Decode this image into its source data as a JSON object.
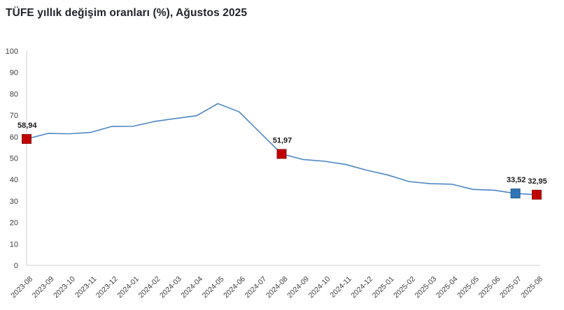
{
  "header": {
    "title": "TÜFE yıllık değişim oranları (%), Ağustos 2025"
  },
  "chart_data": {
    "type": "line",
    "title": "TÜFE yıllık değişim oranları (%), Ağustos 2025",
    "xlabel": "",
    "ylabel": "",
    "ylim": [
      0,
      100
    ],
    "ytick_step": 10,
    "grid": false,
    "legend": "none",
    "line_color": "#4e86c4",
    "axis_color": "#d2d2d2",
    "tick_label_color": "#3d3d3d",
    "categories": [
      "2023-08",
      "2023-09",
      "2023-10",
      "2023-11",
      "2023-12",
      "2024-01",
      "2024-02",
      "2024-03",
      "2024-04",
      "2024-05",
      "2024-06",
      "2024-07",
      "2024-08",
      "2024-09",
      "2024-10",
      "2024-11",
      "2024-12",
      "2025-01",
      "2025-02",
      "2025-03",
      "2025-04",
      "2025-05",
      "2025-06",
      "2025-07",
      "2025-08"
    ],
    "series": [
      {
        "name": "TÜFE yıllık değişim (%)",
        "values": [
          58.94,
          61.53,
          61.36,
          61.98,
          64.77,
          64.86,
          67.07,
          68.5,
          69.8,
          75.45,
          71.6,
          61.78,
          51.97,
          49.38,
          48.58,
          47.09,
          44.38,
          42.12,
          39.05,
          38.1,
          37.86,
          35.41,
          35.05,
          33.52,
          32.95
        ]
      }
    ],
    "highlights": [
      {
        "category": "2023-08",
        "index": 0,
        "value": 58.94,
        "label": "58,94",
        "color": "#c00000",
        "border": "#8e1012"
      },
      {
        "category": "2024-08",
        "index": 12,
        "value": 51.97,
        "label": "51,97",
        "color": "#c00000",
        "border": "#8e1012"
      },
      {
        "category": "2025-07",
        "index": 23,
        "value": 33.52,
        "label": "33,52",
        "color": "#2e75b6",
        "border": "#1f5a92"
      },
      {
        "category": "2025-08",
        "index": 24,
        "value": 32.95,
        "label": "32,95",
        "color": "#c00000",
        "border": "#8e1012"
      }
    ]
  }
}
